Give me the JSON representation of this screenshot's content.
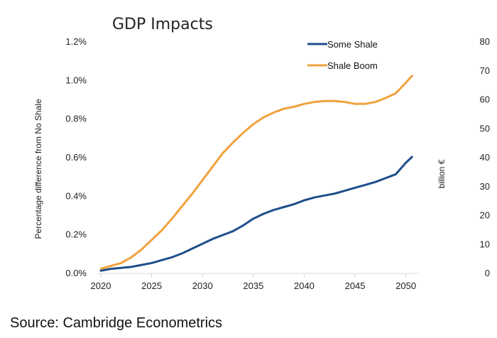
{
  "chart_data": {
    "type": "line",
    "title": "GDP Impacts",
    "xlabel": "",
    "ylabel": "Percentage difference from No Shale",
    "y2label": "billion €",
    "xlim": [
      2020,
      2051
    ],
    "ylim": [
      0,
      1.2
    ],
    "y2lim": [
      0,
      80
    ],
    "xticks": [
      2020,
      2025,
      2030,
      2035,
      2040,
      2045,
      2050
    ],
    "xtick_labels": [
      "2020",
      "2025",
      "2030",
      "2035",
      "2040",
      "2045",
      "2050"
    ],
    "yticks": [
      0,
      0.2,
      0.4,
      0.6,
      0.8,
      1.0,
      1.2
    ],
    "ytick_labels": [
      "0.0%",
      "0.2%",
      "0.4%",
      "0.6%",
      "0.8%",
      "1.0%",
      "1.2%"
    ],
    "y2ticks": [
      0,
      10,
      20,
      30,
      40,
      50,
      60,
      70,
      80
    ],
    "y2tick_labels": [
      "0",
      "10",
      "20",
      "30",
      "40",
      "50",
      "60",
      "70",
      "80"
    ],
    "legend_position": "top-right",
    "series": [
      {
        "name": "Some Shale",
        "color": "#1f4e8c",
        "x": [
          2020,
          2021,
          2022,
          2023,
          2024,
          2025,
          2026,
          2027,
          2028,
          2029,
          2030,
          2031,
          2032,
          2033,
          2034,
          2035,
          2036,
          2037,
          2038,
          2039,
          2040,
          2041,
          2042,
          2043,
          2044,
          2045,
          2046,
          2047,
          2048,
          2049,
          2050,
          2050.6
        ],
        "values": [
          0.01,
          0.02,
          0.025,
          0.03,
          0.04,
          0.05,
          0.065,
          0.08,
          0.1,
          0.125,
          0.15,
          0.175,
          0.195,
          0.215,
          0.245,
          0.28,
          0.305,
          0.325,
          0.34,
          0.355,
          0.375,
          0.39,
          0.4,
          0.41,
          0.425,
          0.44,
          0.455,
          0.47,
          0.49,
          0.51,
          0.57,
          0.6
        ]
      },
      {
        "name": "Shale Boom",
        "color": "#f0a23c",
        "x": [
          2020,
          2021,
          2022,
          2023,
          2024,
          2025,
          2026,
          2027,
          2028,
          2029,
          2030,
          2031,
          2032,
          2033,
          2034,
          2035,
          2036,
          2037,
          2038,
          2039,
          2040,
          2041,
          2042,
          2043,
          2044,
          2045,
          2046,
          2047,
          2048,
          2049,
          2050,
          2050.6
        ],
        "values": [
          0.02,
          0.035,
          0.05,
          0.08,
          0.12,
          0.17,
          0.22,
          0.28,
          0.345,
          0.41,
          0.48,
          0.55,
          0.62,
          0.675,
          0.725,
          0.77,
          0.805,
          0.83,
          0.85,
          0.86,
          0.875,
          0.885,
          0.89,
          0.89,
          0.885,
          0.875,
          0.875,
          0.885,
          0.905,
          0.93,
          0.985,
          1.02
        ]
      }
    ]
  },
  "source": {
    "text": "Source: Cambridge Econometrics"
  }
}
